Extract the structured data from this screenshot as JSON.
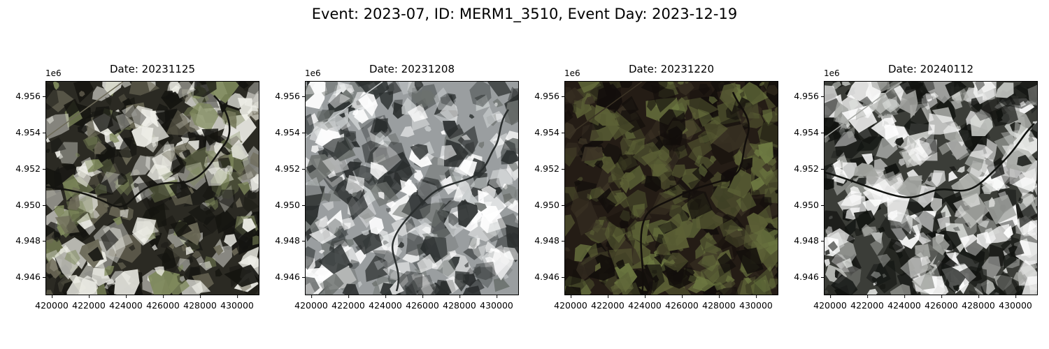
{
  "figure": {
    "suptitle": "Event: 2023-07, ID: MERM1_3510, Event Day: 2023-12-19",
    "axis_offset_label": "1e6",
    "y_ticks": [
      "4.956",
      "4.954",
      "4.952",
      "4.950",
      "4.948",
      "4.946"
    ],
    "x_ticks": [
      "420000",
      "422000",
      "424000",
      "426000",
      "428000",
      "430000"
    ]
  },
  "panels": [
    {
      "title": "Date: 20231125",
      "image": "satellite-rgb-partial-snow",
      "palette": {
        "base": "#2b2a23",
        "light": "#efefe8",
        "mid": "#6d6a58",
        "field": "#7f8a5c",
        "dark": "#141410"
      }
    },
    {
      "title": "Date: 20231208",
      "image": "satellite-rgb-snow-covered",
      "palette": {
        "base": "#9a9ea0",
        "light": "#ffffff",
        "mid": "#c8cccd",
        "field": "#6c716e",
        "dark": "#2a2e2e"
      }
    },
    {
      "title": "Date: 20231220",
      "image": "satellite-rgb-no-snow",
      "palette": {
        "base": "#241c15",
        "light": "#5c6136",
        "mid": "#3b3325",
        "field": "#6e7a42",
        "dark": "#120e0b"
      }
    },
    {
      "title": "Date: 20240112",
      "image": "satellite-rgb-heavy-snow",
      "palette": {
        "base": "#3b3d38",
        "light": "#ffffff",
        "mid": "#a5a7a3",
        "field": "#dcdedb",
        "dark": "#111310"
      }
    }
  ]
}
